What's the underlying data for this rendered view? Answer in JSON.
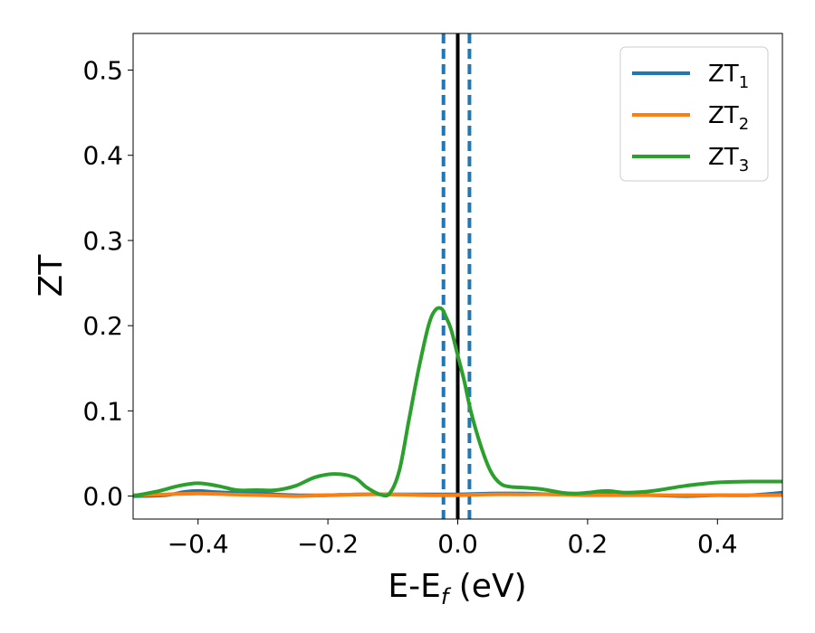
{
  "chart_data": {
    "type": "line",
    "xlabel": {
      "main": "E-E",
      "sub": "f",
      "tail": " (eV)"
    },
    "ylabel": "ZT",
    "xlim": [
      -0.5,
      0.5
    ],
    "ylim": [
      -0.027,
      0.543
    ],
    "xticks": [
      -0.4,
      -0.2,
      0.0,
      0.2,
      0.4
    ],
    "xtick_labels": [
      "−0.4",
      "−0.2",
      "0.0",
      "0.2",
      "0.4"
    ],
    "yticks": [
      0.0,
      0.1,
      0.2,
      0.3,
      0.4,
      0.5
    ],
    "ytick_labels": [
      "0.0",
      "0.1",
      "0.2",
      "0.3",
      "0.4",
      "0.5"
    ],
    "legend_position": "top-right",
    "vlines": [
      {
        "x": 0.0,
        "color": "#000000",
        "style": "solid"
      },
      {
        "x": -0.022,
        "color": "#1f77b4",
        "style": "dashed"
      },
      {
        "x": 0.018,
        "color": "#1f77b4",
        "style": "dashed"
      }
    ],
    "series": [
      {
        "name": "ZT",
        "sub": "1",
        "color": "#1f77b4",
        "x": [
          -0.5,
          -0.45,
          -0.42,
          -0.4,
          -0.38,
          -0.35,
          -0.32,
          -0.3,
          -0.25,
          -0.2,
          -0.15,
          -0.1,
          -0.05,
          0.0,
          0.05,
          0.1,
          0.15,
          0.2,
          0.25,
          0.3,
          0.35,
          0.4,
          0.45,
          0.5
        ],
        "values": [
          0.0,
          0.001,
          0.005,
          0.006,
          0.005,
          0.004,
          0.005,
          0.003,
          0.001,
          0.001,
          0.002,
          0.002,
          0.002,
          0.002,
          0.003,
          0.003,
          0.002,
          0.003,
          0.002,
          0.001,
          0.0,
          0.001,
          0.001,
          0.004
        ]
      },
      {
        "name": "ZT",
        "sub": "2",
        "color": "#ff7f0e",
        "x": [
          -0.5,
          -0.45,
          -0.4,
          -0.35,
          -0.3,
          -0.25,
          -0.2,
          -0.15,
          -0.1,
          -0.05,
          0.0,
          0.05,
          0.1,
          0.15,
          0.2,
          0.25,
          0.3,
          0.35,
          0.4,
          0.45,
          0.5
        ],
        "values": [
          0.001,
          0.002,
          0.003,
          0.002,
          0.001,
          0.0,
          0.001,
          0.002,
          0.002,
          0.001,
          0.001,
          0.002,
          0.002,
          0.002,
          0.001,
          0.001,
          0.001,
          0.001,
          0.001,
          0.001,
          0.001
        ]
      },
      {
        "name": "ZT",
        "sub": "3",
        "color": "#2ca02c",
        "x": [
          -0.5,
          -0.46,
          -0.43,
          -0.4,
          -0.37,
          -0.34,
          -0.31,
          -0.28,
          -0.25,
          -0.22,
          -0.19,
          -0.16,
          -0.14,
          -0.12,
          -0.105,
          -0.09,
          -0.075,
          -0.06,
          -0.045,
          -0.035,
          -0.025,
          -0.018,
          -0.01,
          0.0,
          0.01,
          0.02,
          0.035,
          0.05,
          0.065,
          0.08,
          0.1,
          0.13,
          0.16,
          0.18,
          0.2,
          0.23,
          0.26,
          0.3,
          0.35,
          0.4,
          0.45,
          0.5
        ],
        "values": [
          0.0,
          0.006,
          0.012,
          0.015,
          0.012,
          0.007,
          0.007,
          0.007,
          0.012,
          0.022,
          0.026,
          0.022,
          0.01,
          0.002,
          0.003,
          0.03,
          0.09,
          0.15,
          0.2,
          0.218,
          0.22,
          0.21,
          0.195,
          0.165,
          0.135,
          0.1,
          0.06,
          0.03,
          0.015,
          0.011,
          0.01,
          0.008,
          0.004,
          0.003,
          0.004,
          0.006,
          0.004,
          0.006,
          0.012,
          0.016,
          0.017,
          0.017
        ]
      }
    ]
  }
}
